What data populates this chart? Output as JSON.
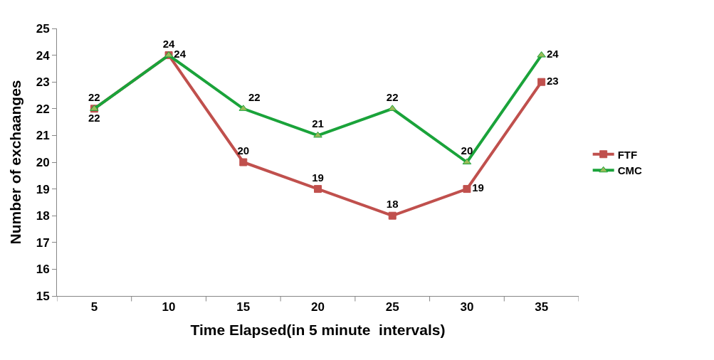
{
  "chart_data": {
    "type": "line",
    "xlabel": "Time Elapsed(in 5 minute  intervals)",
    "ylabel": "Number of exchaanges",
    "categories": [
      "5",
      "10",
      "15",
      "20",
      "25",
      "30",
      "35"
    ],
    "series": [
      {
        "name": "FTF",
        "color": "#c0504d",
        "marker": "square",
        "values": [
          22,
          24,
          20,
          19,
          18,
          19,
          23
        ]
      },
      {
        "name": "CMC",
        "color": "#1aa33a",
        "marker": "triangle",
        "values": [
          22,
          24,
          22,
          21,
          22,
          20,
          24
        ]
      }
    ],
    "ylim": [
      15,
      25
    ],
    "yticks": [
      15,
      16,
      17,
      18,
      19,
      20,
      21,
      22,
      23,
      24,
      25
    ],
    "legend": "right",
    "data_labels": true
  }
}
